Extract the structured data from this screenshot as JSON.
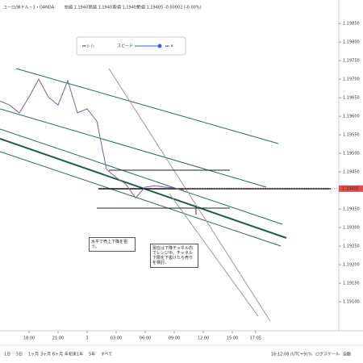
{
  "chart_data": {
    "type": "line",
    "symbol": "ユーロ/米ドル・1・OANDA",
    "ohlc": [
      "始値 1.19407",
      "高値 1.19407",
      "安値 1.19405",
      "終値 1.19405 -0.00002 (-0.00%)"
    ],
    "x": [
      15,
      16,
      17,
      18,
      19,
      20,
      21,
      22,
      23,
      24,
      25,
      26,
      27,
      28,
      29,
      30,
      31,
      32,
      33,
      34
    ],
    "series": [
      {
        "color": "#7b5ea7",
        "values": [
          1.19641,
          1.1963,
          1.19609,
          1.19652,
          1.197,
          1.19652,
          1.1963,
          1.19696,
          1.19609,
          1.1962,
          1.19587,
          1.19457,
          1.19435,
          1.19417,
          1.1938,
          1.19409,
          1.19413,
          1.19409,
          1.19407,
          1.194
        ]
      }
    ],
    "last_price": 1.19405,
    "xlim": [
      15,
      50
    ],
    "xticks": [
      {
        "value": 18,
        "label": "18:00"
      },
      {
        "value": 21,
        "label": "21:00"
      },
      {
        "value": 24,
        "label": "3"
      },
      {
        "value": 27,
        "label": "03:00"
      },
      {
        "value": 30,
        "label": "06:00"
      },
      {
        "value": 33,
        "label": "09:00"
      },
      {
        "value": 36,
        "label": "12:00"
      },
      {
        "value": 39,
        "label": "15:00"
      },
      {
        "value": 41.4,
        "label": "17:05"
      }
    ],
    "ylim": [
      1.19896,
      1.19022
    ],
    "yticks": [
      {
        "value": 1.1985,
        "label": "1.19850"
      },
      {
        "value": 1.198,
        "label": "1.19800"
      },
      {
        "value": 1.1975,
        "label": "1.19750"
      },
      {
        "value": 1.197,
        "label": "1.19700"
      },
      {
        "value": 1.1965,
        "label": "1.19650"
      },
      {
        "value": 1.196,
        "label": "1.19600"
      },
      {
        "value": 1.1955,
        "label": "1.19550"
      },
      {
        "value": 1.195,
        "label": "1.19500"
      },
      {
        "value": 1.1945,
        "label": "1.19450"
      },
      {
        "value": 1.1935,
        "label": "1.19350"
      },
      {
        "value": 1.193,
        "label": "1.19300"
      },
      {
        "value": 1.1925,
        "label": "1.19250"
      },
      {
        "value": 1.192,
        "label": "1.19200"
      },
      {
        "value": 1.1915,
        "label": "1.19150"
      },
      {
        "value": 1.191,
        "label": "1.19100"
      }
    ],
    "replay_speed": "スピード",
    "notes": [
      "水平で売上下降を狙う。",
      "現在は下降チャネル内でレンジ中。チャネル下限を下抜けたら売りを検討。"
    ],
    "ranges": [
      "1日",
      "5日",
      "1ヶ月",
      "3ヶ月",
      "6ヶ月",
      "年初来",
      "1年",
      "5年",
      "すべて"
    ],
    "clock": "16:12:08 (UTC+9)",
    "options": [
      "%",
      "ログスケール",
      "自動"
    ]
  }
}
